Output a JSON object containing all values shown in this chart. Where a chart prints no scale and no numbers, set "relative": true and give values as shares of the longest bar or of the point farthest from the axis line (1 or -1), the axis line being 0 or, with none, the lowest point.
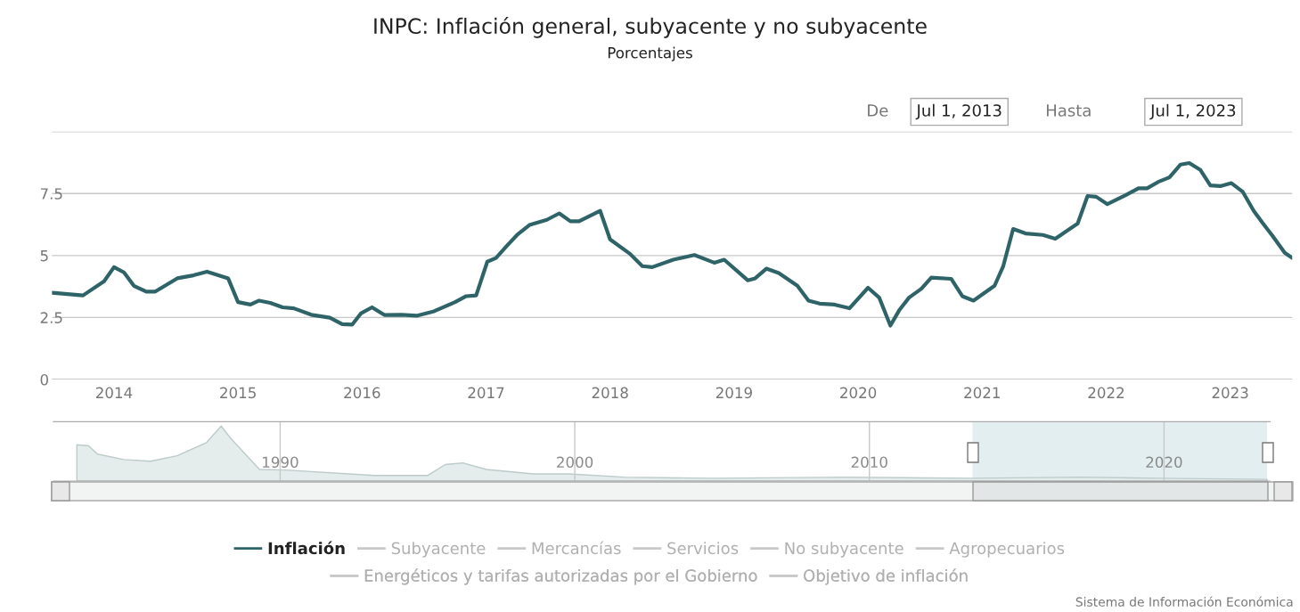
{
  "chart_data": [
    {
      "type": "line",
      "title": "INPC: Inflación general, subyacente y no subyacente",
      "subtitle": "Porcentajes",
      "x": [
        2013.5,
        2013.75,
        2013.92,
        2014.0,
        2014.08,
        2014.16,
        2014.26,
        2014.33,
        2014.51,
        2014.64,
        2014.75,
        2014.92,
        2015.0,
        2015.1,
        2015.17,
        2015.26,
        2015.36,
        2015.45,
        2015.59,
        2015.74,
        2015.84,
        2015.92,
        2015.99,
        2016.08,
        2016.18,
        2016.32,
        2016.44,
        2016.58,
        2016.75,
        2016.84,
        2016.92,
        2017.01,
        2017.08,
        2017.16,
        2017.25,
        2017.35,
        2017.49,
        2017.59,
        2017.68,
        2017.75,
        2017.92,
        2018.0,
        2018.16,
        2018.26,
        2018.34,
        2018.51,
        2018.68,
        2018.84,
        2018.92,
        2019.11,
        2019.17,
        2019.26,
        2019.36,
        2019.51,
        2019.6,
        2019.69,
        2019.81,
        2019.93,
        2020.08,
        2020.17,
        2020.26,
        2020.33,
        2020.41,
        2020.51,
        2020.59,
        2020.75,
        2020.84,
        2020.93,
        2021.1,
        2021.17,
        2021.25,
        2021.35,
        2021.49,
        2021.59,
        2021.77,
        2021.85,
        2021.92,
        2022.01,
        2022.16,
        2022.26,
        2022.33,
        2022.42,
        2022.51,
        2022.6,
        2022.67,
        2022.76,
        2022.84,
        2022.92,
        2023.01,
        2023.1,
        2023.19,
        2023.26,
        2023.34,
        2023.44,
        2023.5
      ],
      "series": [
        {
          "name": "Inflación",
          "color": "#2e6468",
          "values": [
            3.5,
            3.39,
            3.96,
            4.53,
            4.32,
            3.78,
            3.54,
            3.54,
            4.08,
            4.2,
            4.35,
            4.08,
            3.12,
            3.02,
            3.18,
            3.09,
            2.91,
            2.87,
            2.61,
            2.49,
            2.23,
            2.21,
            2.66,
            2.91,
            2.6,
            2.61,
            2.57,
            2.75,
            3.12,
            3.36,
            3.39,
            4.75,
            4.9,
            5.35,
            5.83,
            6.23,
            6.44,
            6.7,
            6.38,
            6.38,
            6.8,
            5.65,
            5.07,
            4.57,
            4.53,
            4.83,
            5.02,
            4.71,
            4.83,
            4.0,
            4.08,
            4.47,
            4.29,
            3.78,
            3.18,
            3.06,
            3.02,
            2.87,
            3.7,
            3.3,
            2.17,
            2.78,
            3.3,
            3.66,
            4.11,
            4.06,
            3.36,
            3.18,
            3.78,
            4.57,
            6.07,
            5.89,
            5.83,
            5.68,
            6.29,
            7.4,
            7.37,
            7.07,
            7.44,
            7.71,
            7.71,
            7.97,
            8.15,
            8.67,
            8.73,
            8.45,
            7.83,
            7.8,
            7.92,
            7.58,
            6.8,
            6.32,
            5.8,
            5.11,
            4.9
          ]
        },
        {
          "name": "Subyacente",
          "color": "#c8c8c8",
          "values": [
            null,
            null,
            null,
            null,
            null,
            null,
            null,
            null,
            null,
            null,
            null,
            null,
            null,
            null,
            null,
            null,
            null,
            null,
            null,
            null,
            null,
            null,
            null,
            null,
            null,
            null,
            null,
            null,
            null,
            null,
            null,
            null,
            null,
            null,
            null,
            null,
            null,
            null,
            null,
            null,
            null,
            null,
            null,
            null,
            null,
            null,
            null,
            null,
            null,
            null,
            null,
            null,
            null,
            null,
            null,
            null,
            null,
            null,
            null,
            null,
            null,
            null,
            null,
            null,
            null,
            null,
            null,
            null,
            null,
            null,
            null,
            null,
            null,
            null,
            null,
            null,
            null,
            null,
            null,
            null,
            null,
            null,
            null,
            null,
            null,
            null,
            null,
            null,
            null,
            null,
            null,
            null,
            null,
            null,
            null
          ]
        },
        {
          "name": "Mercancías",
          "color": "#c8c8c8",
          "values": [
            null,
            null,
            null,
            null,
            null,
            null,
            null,
            null,
            null,
            null,
            null,
            null,
            null,
            null,
            null,
            null,
            null,
            null,
            null,
            null,
            null,
            null,
            null,
            null,
            null,
            null,
            null,
            null,
            null,
            null,
            null,
            null,
            null,
            null,
            null,
            null,
            null,
            null,
            null,
            null,
            null,
            null,
            null,
            null,
            null,
            null,
            null,
            null,
            null,
            null,
            null,
            null,
            null,
            null,
            null,
            null,
            null,
            null,
            null,
            null,
            null,
            null,
            null,
            null,
            null,
            null,
            null,
            null,
            null,
            null,
            null,
            null,
            null,
            null,
            null,
            null,
            null,
            null,
            null,
            null,
            null,
            null,
            null,
            null,
            null,
            null,
            null,
            null,
            null,
            null,
            null,
            null,
            null,
            null,
            null
          ]
        },
        {
          "name": "Servicios",
          "color": "#c8c8c8",
          "values": [
            null,
            null,
            null,
            null,
            null,
            null,
            null,
            null,
            null,
            null,
            null,
            null,
            null,
            null,
            null,
            null,
            null,
            null,
            null,
            null,
            null,
            null,
            null,
            null,
            null,
            null,
            null,
            null,
            null,
            null,
            null,
            null,
            null,
            null,
            null,
            null,
            null,
            null,
            null,
            null,
            null,
            null,
            null,
            null,
            null,
            null,
            null,
            null,
            null,
            null,
            null,
            null,
            null,
            null,
            null,
            null,
            null,
            null,
            null,
            null,
            null,
            null,
            null,
            null,
            null,
            null,
            null,
            null,
            null,
            null,
            null,
            null,
            null,
            null,
            null,
            null,
            null,
            null,
            null,
            null,
            null,
            null,
            null,
            null,
            null,
            null,
            null,
            null,
            null,
            null,
            null,
            null,
            null,
            null,
            null
          ]
        },
        {
          "name": "No subyacente",
          "color": "#c8c8c8",
          "values": [
            null,
            null,
            null,
            null,
            null,
            null,
            null,
            null,
            null,
            null,
            null,
            null,
            null,
            null,
            null,
            null,
            null,
            null,
            null,
            null,
            null,
            null,
            null,
            null,
            null,
            null,
            null,
            null,
            null,
            null,
            null,
            null,
            null,
            null,
            null,
            null,
            null,
            null,
            null,
            null,
            null,
            null,
            null,
            null,
            null,
            null,
            null,
            null,
            null,
            null,
            null,
            null,
            null,
            null,
            null,
            null,
            null,
            null,
            null,
            null,
            null,
            null,
            null,
            null,
            null,
            null,
            null,
            null,
            null,
            null,
            null,
            null,
            null,
            null,
            null,
            null,
            null,
            null,
            null,
            null,
            null,
            null,
            null,
            null,
            null,
            null,
            null,
            null,
            null,
            null,
            null,
            null,
            null,
            null,
            null
          ]
        },
        {
          "name": "Agropecuarios",
          "color": "#c8c8c8",
          "values": [
            null,
            null,
            null,
            null,
            null,
            null,
            null,
            null,
            null,
            null,
            null,
            null,
            null,
            null,
            null,
            null,
            null,
            null,
            null,
            null,
            null,
            null,
            null,
            null,
            null,
            null,
            null,
            null,
            null,
            null,
            null,
            null,
            null,
            null,
            null,
            null,
            null,
            null,
            null,
            null,
            null,
            null,
            null,
            null,
            null,
            null,
            null,
            null,
            null,
            null,
            null,
            null,
            null,
            null,
            null,
            null,
            null,
            null,
            null,
            null,
            null,
            null,
            null,
            null,
            null,
            null,
            null,
            null,
            null,
            null,
            null,
            null,
            null,
            null,
            null,
            null,
            null,
            null,
            null,
            null,
            null,
            null,
            null,
            null,
            null,
            null,
            null,
            null,
            null,
            null,
            null,
            null,
            null,
            null,
            null
          ]
        },
        {
          "name": "Energéticos y tarifas autorizadas por el Gobierno",
          "color": "#c8c8c8",
          "values": [
            null,
            null,
            null,
            null,
            null,
            null,
            null,
            null,
            null,
            null,
            null,
            null,
            null,
            null,
            null,
            null,
            null,
            null,
            null,
            null,
            null,
            null,
            null,
            null,
            null,
            null,
            null,
            null,
            null,
            null,
            null,
            null,
            null,
            null,
            null,
            null,
            null,
            null,
            null,
            null,
            null,
            null,
            null,
            null,
            null,
            null,
            null,
            null,
            null,
            null,
            null,
            null,
            null,
            null,
            null,
            null,
            null,
            null,
            null,
            null,
            null,
            null,
            null,
            null,
            null,
            null,
            null,
            null,
            null,
            null,
            null,
            null,
            null,
            null,
            null,
            null,
            null,
            null,
            null,
            null,
            null,
            null,
            null,
            null,
            null,
            null,
            null,
            null,
            null,
            null,
            null,
            null,
            null,
            null,
            null
          ]
        },
        {
          "name": "Objetivo de inflación",
          "color": "#c8c8c8",
          "values": [
            null,
            null,
            null,
            null,
            null,
            null,
            null,
            null,
            null,
            null,
            null,
            null,
            null,
            null,
            null,
            null,
            null,
            null,
            null,
            null,
            null,
            null,
            null,
            null,
            null,
            null,
            null,
            null,
            null,
            null,
            null,
            null,
            null,
            null,
            null,
            null,
            null,
            null,
            null,
            null,
            null,
            null,
            null,
            null,
            null,
            null,
            null,
            null,
            null,
            null,
            null,
            null,
            null,
            null,
            null,
            null,
            null,
            null,
            null,
            null,
            null,
            null,
            null,
            null,
            null,
            null,
            null,
            null,
            null,
            null,
            null,
            null,
            null,
            null,
            null,
            null,
            null,
            null,
            null,
            null,
            null,
            null,
            null,
            null,
            null,
            null,
            null,
            null,
            null,
            null,
            null,
            null,
            null,
            null,
            null
          ]
        }
      ],
      "xlim": [
        2013.5,
        2023.5
      ],
      "xticks": [
        2014,
        2015,
        2016,
        2017,
        2018,
        2019,
        2020,
        2021,
        2022,
        2023
      ],
      "ylim": [
        0,
        10
      ],
      "yticks": [
        0,
        2.5,
        5,
        7.5,
        {
          "value": 10,
          "label": null
        }
      ],
      "grid": "y",
      "legend": "bottom",
      "annotations": [
        "De",
        "Jul 1, 2013",
        "Hasta",
        "Jul 1, 2023",
        "Sistema de Información Económica"
      ]
    },
    {
      "type": "area",
      "relative": true,
      "color": "#e4ecec",
      "x": [
        1983.1,
        1983.5,
        1983.8,
        1984.7,
        1985.6,
        1986.5,
        1987.5,
        1988.0,
        1988.3,
        1989.3,
        1990.2,
        1993.2,
        1995.0,
        1995.6,
        1996.2,
        1997.0,
        1998.6,
        1999.8,
        2001.7,
        2004.7,
        2009.2,
        2013.5,
        2017.2,
        2019.8,
        2023.5
      ],
      "values": [
        0.66,
        0.64,
        0.49,
        0.39,
        0.36,
        0.46,
        0.7,
        1,
        0.79,
        0.21,
        0.2,
        0.1,
        0.1,
        0.3,
        0.33,
        0.21,
        0.13,
        0.13,
        0.07,
        0.05,
        0.07,
        0.05,
        0.07,
        0.05,
        0.03
      ],
      "xlim": [
        1982.3,
        2023.6
      ],
      "xticks": [
        1990,
        2000,
        2010,
        2020
      ],
      "grid": "x",
      "tick_labels": "x",
      "bands": [
        {
          "axis": "x",
          "from": 2013.5,
          "to": 2023.5,
          "color": "#e3eef0"
        }
      ]
    }
  ]
}
